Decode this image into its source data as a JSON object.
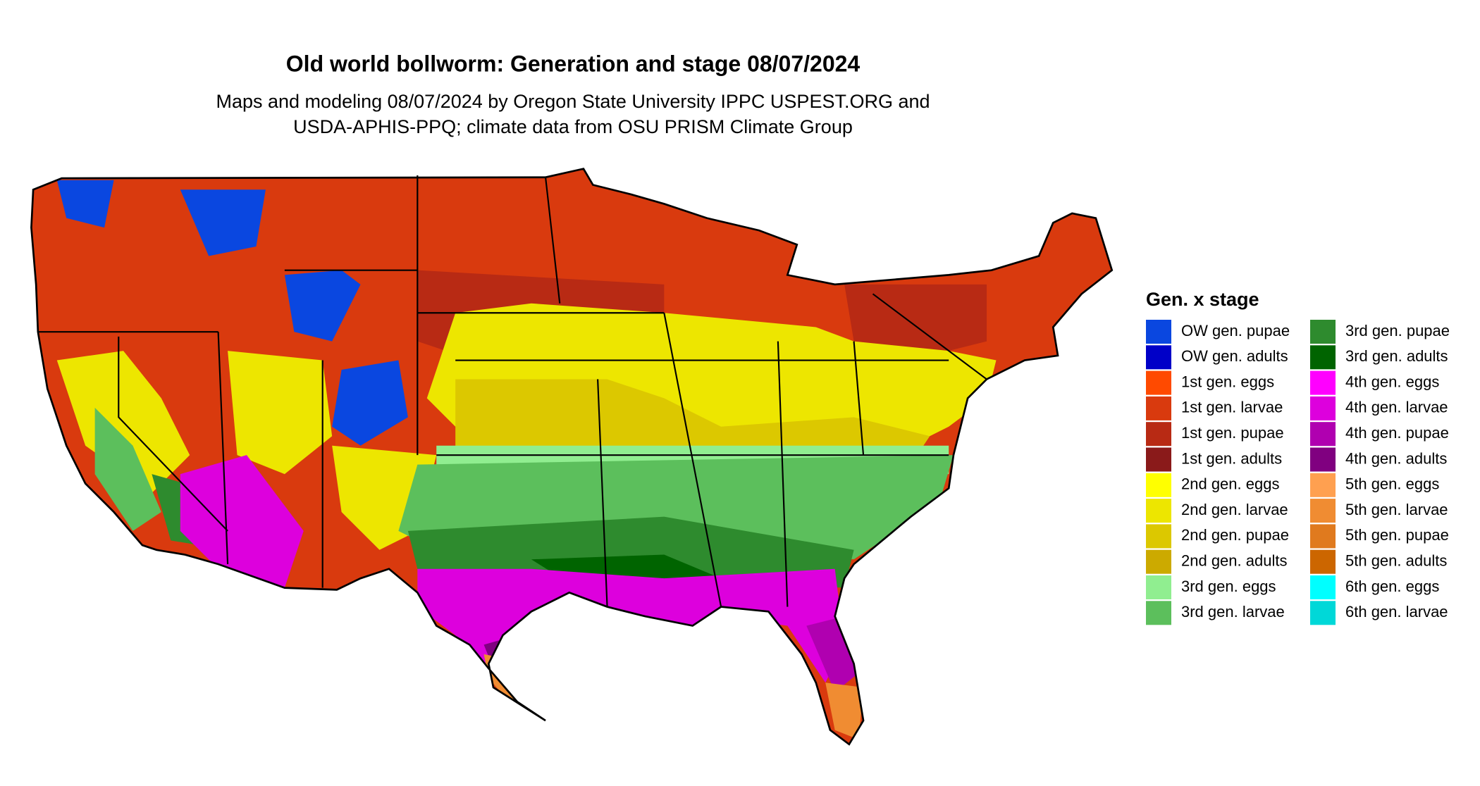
{
  "title": "Old world bollworm: Generation and stage 08/07/2024",
  "subtitle": [
    "Maps and modeling 08/07/2024 by Oregon State University IPPC USPEST.ORG and",
    "USDA-APHIS-PPQ; climate data from OSU PRISM Climate Group"
  ],
  "legend": {
    "title": "Gen. x stage",
    "items": [
      {
        "label": "OW gen. pupae",
        "color": "#0a47e0"
      },
      {
        "label": "OW gen. adults",
        "color": "#0000c8"
      },
      {
        "label": "1st gen. eggs",
        "color": "#ff4a00"
      },
      {
        "label": "1st gen. larvae",
        "color": "#d93a0e"
      },
      {
        "label": "1st gen. pupae",
        "color": "#b82a14"
      },
      {
        "label": "1st gen. adults",
        "color": "#8a1a1a"
      },
      {
        "label": "2nd gen. eggs",
        "color": "#ffff00"
      },
      {
        "label": "2nd gen. larvae",
        "color": "#ede600"
      },
      {
        "label": "2nd gen. pupae",
        "color": "#dcc800"
      },
      {
        "label": "2nd gen. adults",
        "color": "#ccaa00"
      },
      {
        "label": "3rd gen. eggs",
        "color": "#90ee90"
      },
      {
        "label": "3rd gen. larvae",
        "color": "#5cbf5c"
      },
      {
        "label": "3rd gen. pupae",
        "color": "#2e8b2e"
      },
      {
        "label": "3rd gen. adults",
        "color": "#006400"
      },
      {
        "label": "4th gen. eggs",
        "color": "#ff00ff"
      },
      {
        "label": "4th gen. larvae",
        "color": "#dd00dd"
      },
      {
        "label": "4th gen. pupae",
        "color": "#b000b0"
      },
      {
        "label": "4th gen. adults",
        "color": "#800080"
      },
      {
        "label": "5th gen. eggs",
        "color": "#ffa050"
      },
      {
        "label": "5th gen. larvae",
        "color": "#f08c32"
      },
      {
        "label": "5th gen. pupae",
        "color": "#e07a1e"
      },
      {
        "label": "5th gen. adults",
        "color": "#cc6600"
      },
      {
        "label": "6th gen. eggs",
        "color": "#00ffff"
      },
      {
        "label": "6th gen. larvae",
        "color": "#00d8d8"
      }
    ]
  }
}
